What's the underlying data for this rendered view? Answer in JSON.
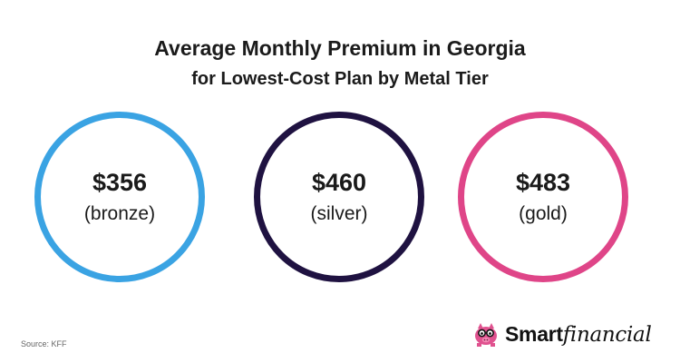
{
  "title": {
    "line1": "Average Monthly Premium in Georgia",
    "line2": "for Lowest-Cost Plan by Metal Tier"
  },
  "tiers": [
    {
      "amount": "$356",
      "label": "(bronze)",
      "color": "#3aa3e3"
    },
    {
      "amount": "$460",
      "label": "(silver)",
      "color": "#1f1241"
    },
    {
      "amount": "$483",
      "label": "(gold)",
      "color": "#df4588"
    }
  ],
  "source": "Source: KFF",
  "logo": {
    "part1": "Smart",
    "part2": "financial",
    "icon": "piggy-bank-icon",
    "icon_color": "#e0528f"
  }
}
